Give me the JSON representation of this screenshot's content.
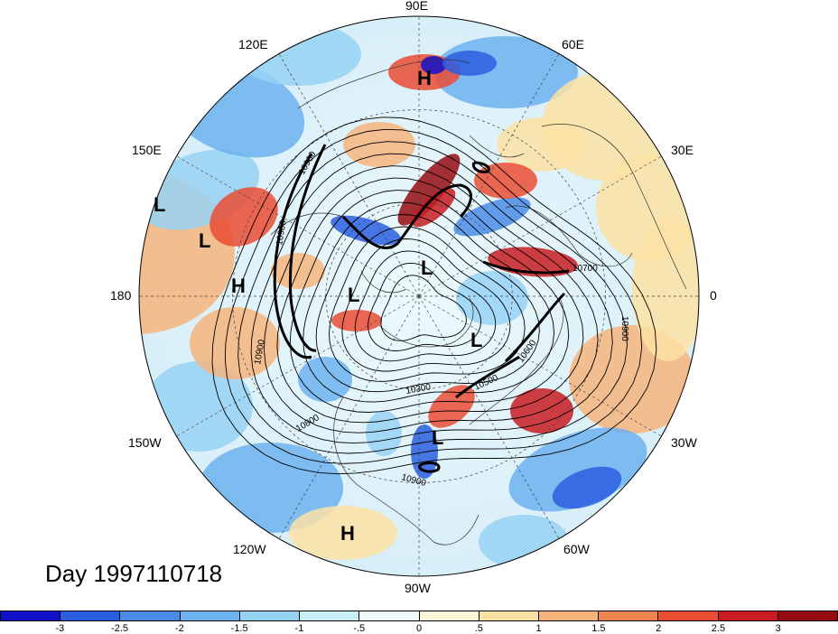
{
  "title_label": "Day 1997110718",
  "longitude_labels": {
    "top": "90E",
    "upper_left": "120E",
    "upper_right": "60E",
    "mid_left": "150E",
    "mid_right": "30E",
    "left": "180",
    "right": "0",
    "lower_left": "150W",
    "lower_right": "30W",
    "bottom_left": "120W",
    "bottom_right": "60W",
    "bottom": "90W"
  },
  "pressure_systems": [
    {
      "type": "H",
      "name": "high-central-asia"
    },
    {
      "type": "L",
      "name": "low-far-west-1"
    },
    {
      "type": "L",
      "name": "low-far-west-2"
    },
    {
      "type": "H",
      "name": "high-pacific"
    },
    {
      "type": "L",
      "name": "low-center"
    },
    {
      "type": "L",
      "name": "low-west"
    },
    {
      "type": "L",
      "name": "low-atlantic"
    },
    {
      "type": "L",
      "name": "low-east-coast"
    },
    {
      "type": "H",
      "name": "high-east-pacific"
    }
  ],
  "contour_labels": [
    "10900",
    "10900",
    "10900",
    "10800",
    "10300",
    "10500",
    "10600",
    "10900",
    "10900",
    "10700"
  ],
  "colorbar": {
    "colors": [
      "#1010c8",
      "#2a5ee0",
      "#4a8ce8",
      "#6cb2ee",
      "#96d2f4",
      "#c8eef8",
      "#ecfafc",
      "#fdf6d8",
      "#fbe2a4",
      "#f6b47c",
      "#f0844e",
      "#ea4c34",
      "#c81c22",
      "#960c12"
    ],
    "ticks": [
      "-3",
      "-2.5",
      "-2",
      "-1.5",
      "-1",
      "-.5",
      "0",
      ".5",
      "1",
      "1.5",
      "2",
      "2.5",
      "3"
    ]
  }
}
